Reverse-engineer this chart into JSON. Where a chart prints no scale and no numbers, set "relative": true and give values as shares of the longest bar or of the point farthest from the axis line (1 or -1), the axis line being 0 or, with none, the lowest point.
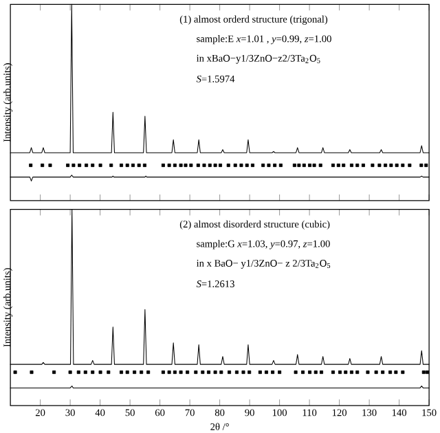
{
  "chart_data": [
    {
      "type": "line",
      "relative": true,
      "ylabel": "Intensity (arb.units)",
      "xlim": [
        10,
        150
      ],
      "xticks": [
        20,
        30,
        40,
        50,
        60,
        70,
        80,
        90,
        100,
        110,
        120,
        130,
        140,
        150
      ],
      "tick_labels": false,
      "annotations": [
        "(1) almost orderd structure (trigonal)",
        "sample:E *x*=1.01 , *y*=0.99, *z*=1.00",
        "in xBaO−y1/3ZnO−z2/3Ta$_{2}$O$_{5}$",
        "*S*=1.5974"
      ],
      "series": [
        {
          "color": "#000000",
          "x": [
            10,
            16.5,
            17,
            17.5,
            20.5,
            21,
            21.5,
            30,
            30.5,
            31,
            43.8,
            44.3,
            44.8,
            54.5,
            55,
            55.5,
            64,
            64.5,
            65,
            72.5,
            73,
            73.5,
            80.5,
            81,
            81.5,
            89,
            89.5,
            90,
            97.5,
            98,
            98.5,
            105.5,
            106,
            106.5,
            114,
            114.5,
            115,
            123,
            123.5,
            124,
            133.5,
            134,
            134.5,
            147,
            147.5,
            148,
            150
          ],
          "values": [
            0.244,
            0.244,
            0.27,
            0.244,
            0.244,
            0.27,
            0.244,
            0.244,
            1,
            0.244,
            0.244,
            0.45,
            0.244,
            0.244,
            0.43,
            0.244,
            0.244,
            0.31,
            0.244,
            0.244,
            0.31,
            0.244,
            0.244,
            0.26,
            0.244,
            0.244,
            0.31,
            0.244,
            0.244,
            0.25,
            0.244,
            0.244,
            0.27,
            0.244,
            0.244,
            0.27,
            0.244,
            0.244,
            0.26,
            0.244,
            0.244,
            0.26,
            0.244,
            0.244,
            0.28,
            0.244,
            0.244
          ]
        },
        {
          "type": "scatter",
          "marker": "square",
          "color": "#000000",
          "x": [
            16.8,
            20.7,
            23.3,
            29.2,
            31.1,
            33.1,
            35.4,
            37.5,
            40.1,
            43.7,
            47.1,
            49.1,
            51.0,
            53.0,
            54.9,
            61.1,
            63.1,
            65.0,
            67.0,
            68.6,
            70.4,
            72.8,
            74.8,
            76.7,
            78.5,
            80.2,
            82.9,
            85.2,
            87.2,
            89.1,
            91.0,
            94.5,
            96.4,
            98.4,
            100.4,
            105.0,
            106.5,
            108.2,
            110.1,
            111.6,
            113.7,
            117.9,
            119.7,
            121.4,
            124.1,
            126.0,
            128.0,
            131.1,
            133.4,
            135.4,
            137.3,
            139.2,
            141.2,
            143.5,
            147.4,
            149.0
          ],
          "values": [
            0.18,
            0.18,
            0.18,
            0.18,
            0.18,
            0.18,
            0.18,
            0.18,
            0.18,
            0.18,
            0.18,
            0.18,
            0.18,
            0.18,
            0.18,
            0.18,
            0.18,
            0.18,
            0.18,
            0.18,
            0.18,
            0.18,
            0.18,
            0.18,
            0.18,
            0.18,
            0.18,
            0.18,
            0.18,
            0.18,
            0.18,
            0.18,
            0.18,
            0.18,
            0.18,
            0.18,
            0.18,
            0.18,
            0.18,
            0.18,
            0.18,
            0.18,
            0.18,
            0.18,
            0.18,
            0.18,
            0.18,
            0.18,
            0.18,
            0.18,
            0.18,
            0.18,
            0.18,
            0.18,
            0.18,
            0.18
          ]
        },
        {
          "color": "#000000",
          "x": [
            10,
            16.5,
            17,
            17.5,
            30,
            30.5,
            31,
            44,
            44.3,
            44.6,
            55,
            55.3,
            55.6,
            147,
            147.5,
            148,
            150
          ],
          "values": [
            0.12,
            0.12,
            0.1,
            0.12,
            0.12,
            0.13,
            0.12,
            0.12,
            0.125,
            0.12,
            0.12,
            0.125,
            0.12,
            0.12,
            0.125,
            0.12,
            0.12
          ]
        }
      ]
    },
    {
      "type": "line",
      "relative": true,
      "ylabel": "Intensity (arb.units)",
      "xlabel": "2θ /°",
      "xlim": [
        10,
        150
      ],
      "xticks": [
        20,
        30,
        40,
        50,
        60,
        70,
        80,
        90,
        100,
        110,
        120,
        130,
        140,
        150
      ],
      "tick_labels": "x",
      "annotations": [
        "(2) almost disorderd structure (cubic)",
        "sample:G *x*=1.03, *y*=0.97, *z*=1.00",
        "in x BaO− y1/3ZnO− z 2/3Ta$_{2}$O$_{5}$",
        "*S*=1.2613"
      ],
      "series": [
        {
          "color": "#000000",
          "x": [
            10,
            20.5,
            21,
            21.5,
            30.1,
            30.6,
            31.1,
            37,
            37.5,
            38,
            43.8,
            44.3,
            44.8,
            54.5,
            55,
            55.5,
            64,
            64.5,
            65,
            72.5,
            73,
            73.5,
            80.5,
            81,
            81.5,
            89,
            89.5,
            90,
            97.5,
            98,
            98.5,
            105.5,
            106,
            106.5,
            114,
            114.5,
            115,
            123,
            123.5,
            124,
            133.5,
            134,
            134.5,
            147,
            147.5,
            148,
            150
          ],
          "values": [
            0.21,
            0.21,
            0.22,
            0.21,
            0.21,
            1,
            0.21,
            0.21,
            0.23,
            0.21,
            0.21,
            0.4,
            0.21,
            0.21,
            0.49,
            0.21,
            0.21,
            0.32,
            0.21,
            0.21,
            0.31,
            0.21,
            0.21,
            0.25,
            0.21,
            0.21,
            0.31,
            0.21,
            0.21,
            0.23,
            0.21,
            0.21,
            0.26,
            0.21,
            0.21,
            0.25,
            0.21,
            0.21,
            0.24,
            0.21,
            0.21,
            0.25,
            0.21,
            0.21,
            0.28,
            0.21,
            0.21
          ]
        },
        {
          "type": "scatter",
          "marker": "square",
          "color": "#000000",
          "x": [
            11.6,
            17.1,
            24.6,
            30.0,
            32.8,
            35.1,
            37.5,
            40.1,
            42.8,
            47.1,
            49.1,
            51.5,
            53.8,
            56.1,
            61.1,
            63.1,
            65.0,
            67.0,
            69.2,
            72.0,
            74.3,
            76.3,
            78.5,
            80.5,
            83.2,
            85.7,
            87.9,
            89.9,
            93.5,
            95.6,
            97.7,
            100.0,
            105.4,
            107.8,
            110.1,
            112.1,
            114.0,
            117.9,
            120.2,
            122.1,
            124.1,
            126.0,
            129.5,
            132.3,
            134.5,
            137.0,
            138.9,
            141.2,
            148.2,
            149.4
          ],
          "values": [
            0.17,
            0.17,
            0.17,
            0.17,
            0.17,
            0.17,
            0.17,
            0.17,
            0.17,
            0.17,
            0.17,
            0.17,
            0.17,
            0.17,
            0.17,
            0.17,
            0.17,
            0.17,
            0.17,
            0.17,
            0.17,
            0.17,
            0.17,
            0.17,
            0.17,
            0.17,
            0.17,
            0.17,
            0.17,
            0.17,
            0.17,
            0.17,
            0.17,
            0.17,
            0.17,
            0.17,
            0.17,
            0.17,
            0.17,
            0.17,
            0.17,
            0.17,
            0.17,
            0.17,
            0.17,
            0.17,
            0.17,
            0.17,
            0.17,
            0.17
          ]
        },
        {
          "color": "#000000",
          "x": [
            10,
            30,
            30.6,
            31,
            147,
            147.5,
            148,
            150
          ],
          "values": [
            0.09,
            0.09,
            0.1,
            0.09,
            0.09,
            0.1,
            0.09,
            0.09
          ]
        }
      ]
    }
  ]
}
